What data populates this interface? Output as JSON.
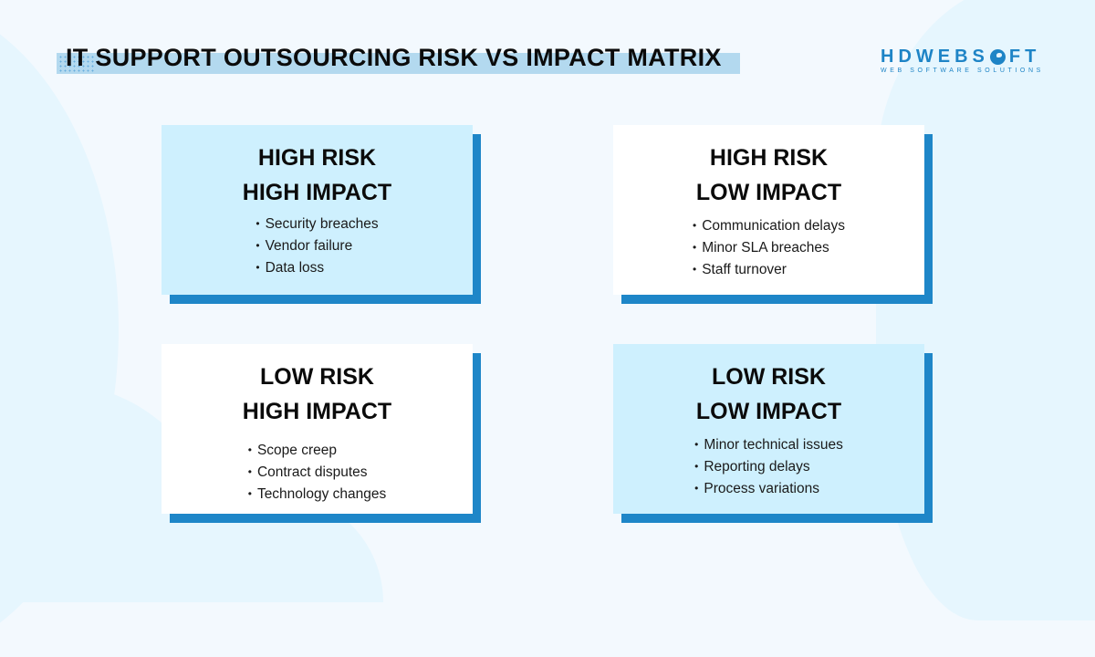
{
  "title": "IT SUPPORT OUTSOURCING RISK VS IMPACT MATRIX",
  "logo": {
    "main_pre": "HDWEBS",
    "main_post": "FT",
    "tagline": "WEB SOFTWARE SOLUTIONS"
  },
  "colors": {
    "background": "#f3f9fe",
    "title_highlight": "#b3d9ef",
    "card_light": "#cef0fe",
    "card_white": "#ffffff",
    "card_shadow": "#1e86c8",
    "brand": "#1e84c6"
  },
  "quadrants": [
    {
      "heading_line1": "HIGH RISK",
      "heading_line2": "HIGH IMPACT",
      "items": [
        "Security breaches",
        "Vendor failure",
        "Data loss"
      ]
    },
    {
      "heading_line1": "HIGH RISK",
      "heading_line2": "LOW IMPACT",
      "items": [
        "Communication delays",
        "Minor SLA breaches",
        "Staff turnover"
      ]
    },
    {
      "heading_line1": "LOW RISK",
      "heading_line2": "HIGH IMPACT",
      "items": [
        "Scope creep",
        "Contract disputes",
        "Technology changes"
      ]
    },
    {
      "heading_line1": "LOW RISK",
      "heading_line2": "LOW IMPACT",
      "items": [
        "Minor technical issues",
        "Reporting delays",
        "Process variations"
      ]
    }
  ]
}
